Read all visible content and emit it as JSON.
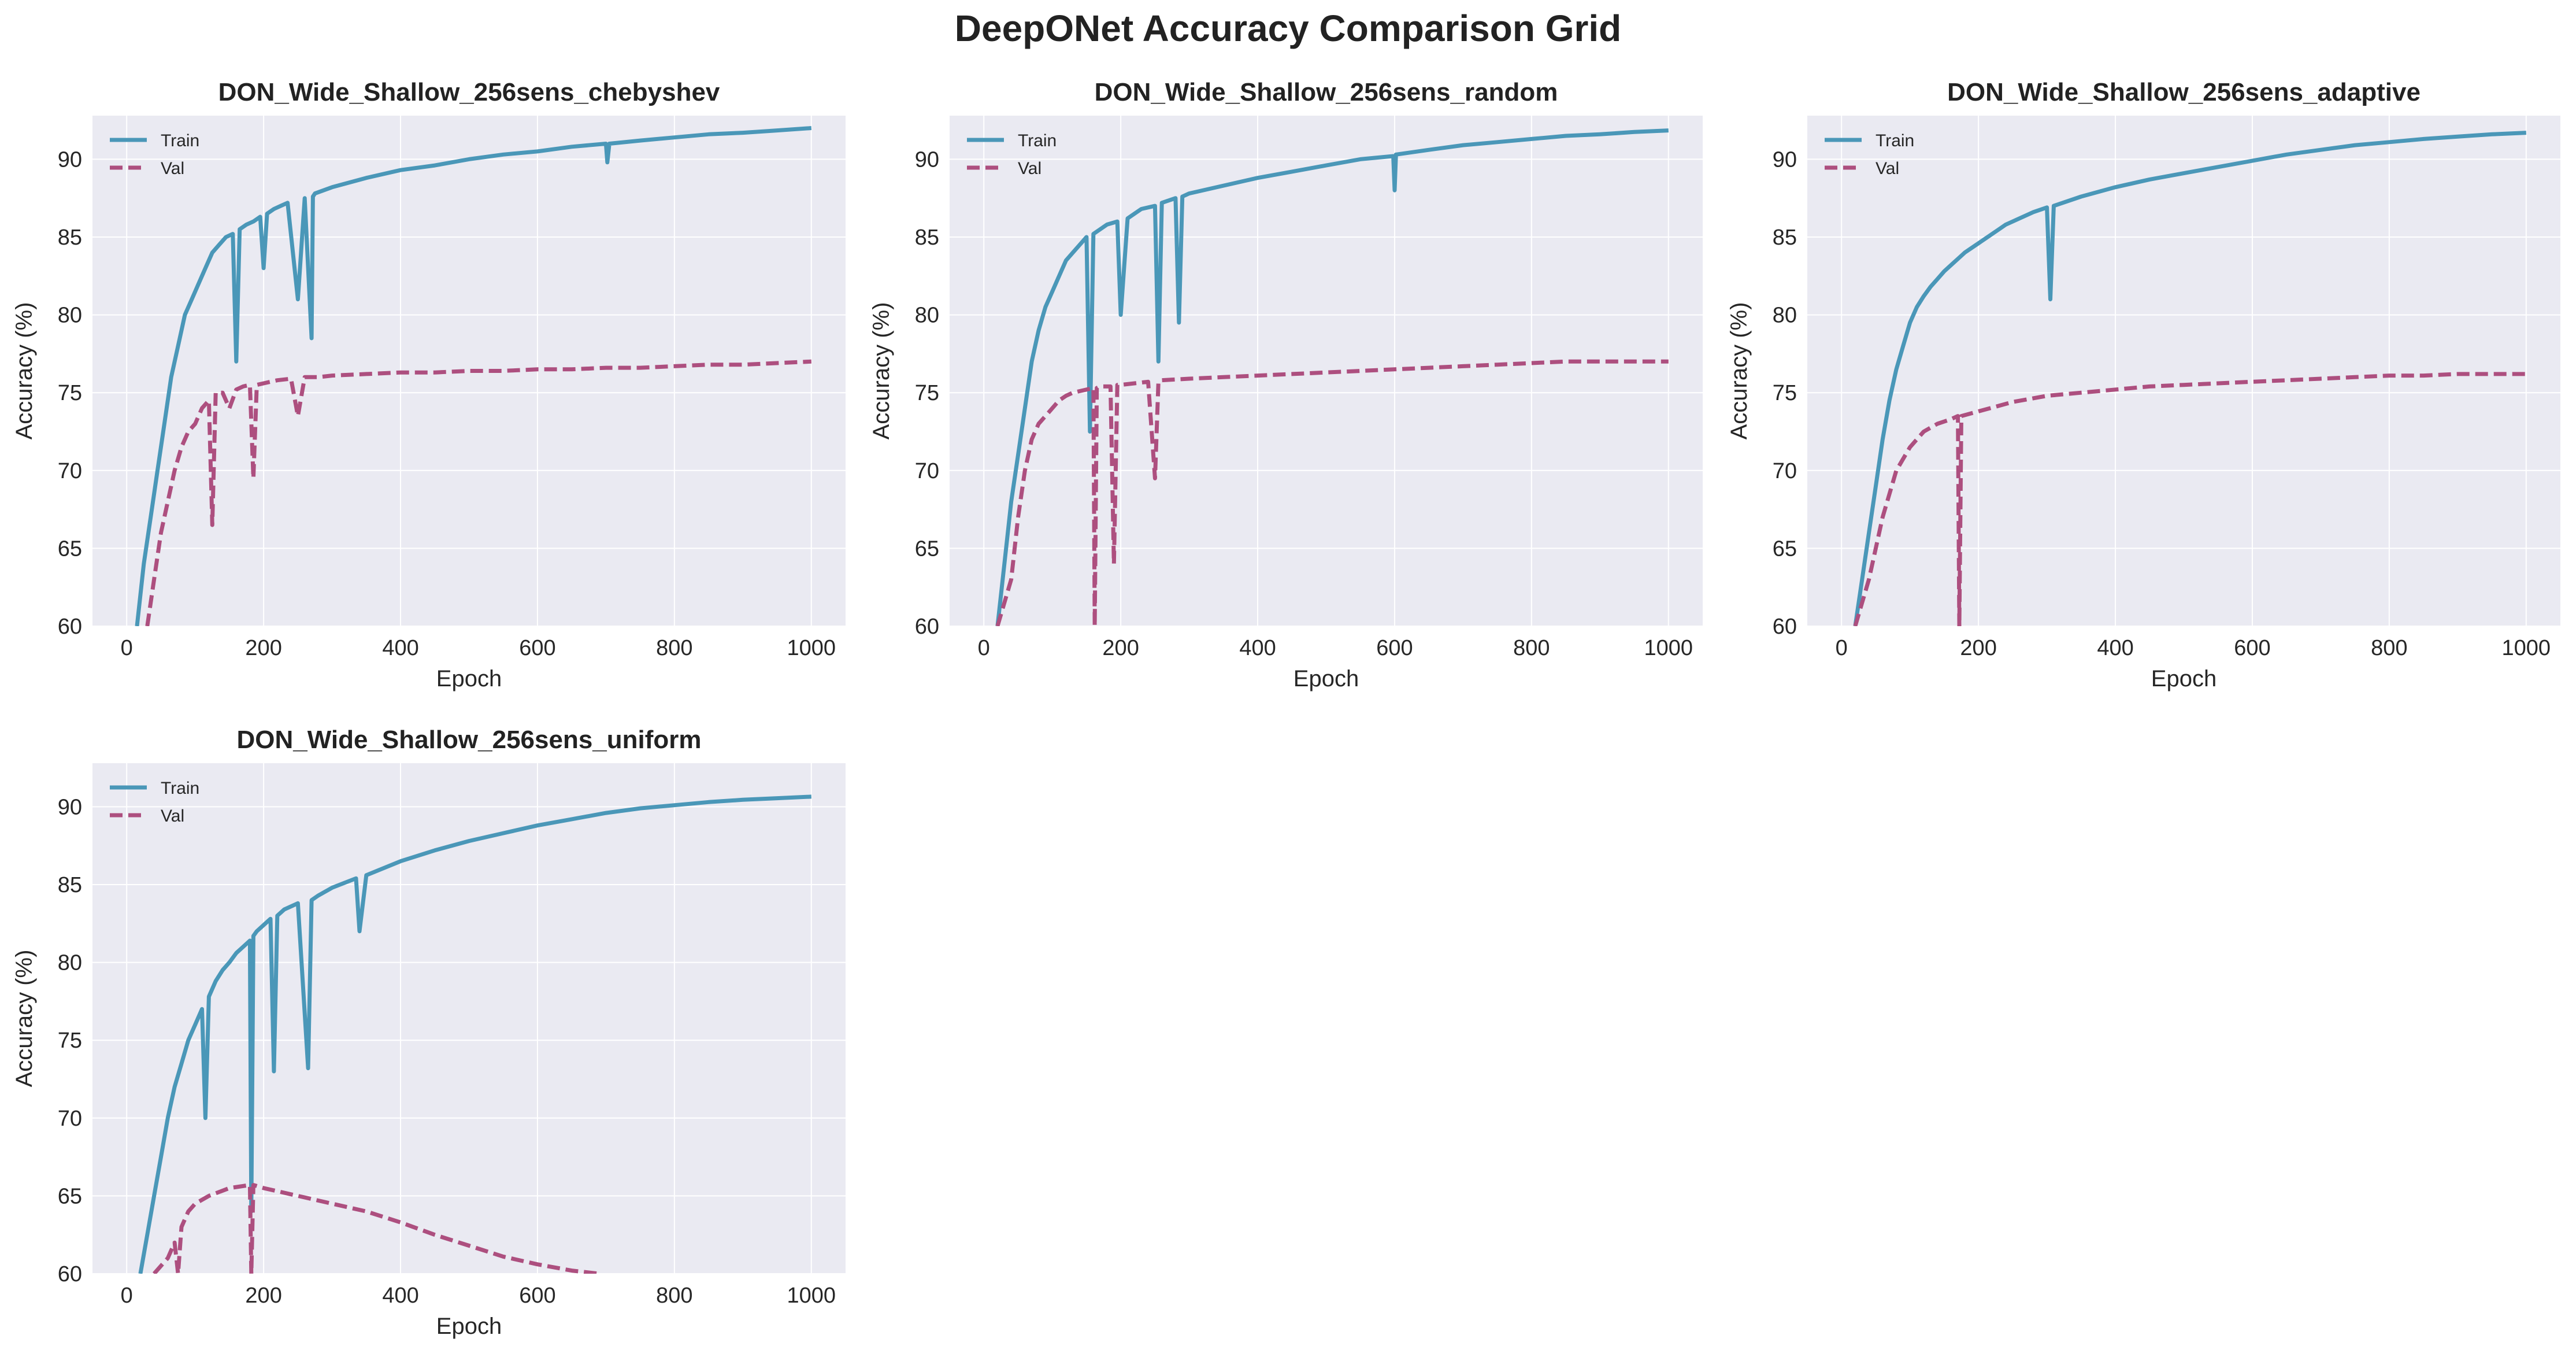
{
  "figure": {
    "title": "DeepONet Accuracy Comparison Grid"
  },
  "colors": {
    "train": "#4a97b8",
    "val": "#ad4f7f",
    "panel_bg": "#eaeaf2",
    "grid": "#ffffff"
  },
  "chart_data": [
    {
      "type": "line",
      "title": "DON_Wide_Shallow_256sens_chebyshev",
      "xlabel": "Epoch",
      "ylabel": "Accuracy (%)",
      "xlim": [
        -50,
        1050
      ],
      "ylim": [
        60,
        92.8
      ],
      "xticks": [
        0,
        200,
        400,
        600,
        800,
        1000
      ],
      "yticks": [
        60,
        65,
        70,
        75,
        80,
        85,
        90
      ],
      "grid": true,
      "legend": "top-left",
      "series": [
        {
          "name": "Train",
          "style": "solid",
          "x": [
            15,
            25,
            35,
            45,
            55,
            65,
            75,
            85,
            95,
            105,
            115,
            125,
            135,
            145,
            155,
            160,
            165,
            175,
            185,
            195,
            200,
            205,
            215,
            225,
            235,
            250,
            260,
            270,
            272,
            275,
            300,
            350,
            400,
            450,
            500,
            550,
            600,
            650,
            700,
            702,
            705,
            750,
            800,
            850,
            900,
            950,
            1000
          ],
          "y": [
            60,
            64,
            67,
            70,
            73,
            76,
            78,
            80,
            81,
            82,
            83,
            84,
            84.5,
            85,
            85.2,
            77,
            85.5,
            85.8,
            86,
            86.3,
            83,
            86.5,
            86.8,
            87,
            87.2,
            81,
            87.5,
            78.5,
            87.6,
            87.8,
            88.2,
            88.8,
            89.3,
            89.6,
            90,
            90.3,
            90.5,
            90.8,
            91,
            89.8,
            91,
            91.2,
            91.4,
            91.6,
            91.7,
            91.85,
            92
          ]
        },
        {
          "name": "Val",
          "style": "dashed",
          "x": [
            30,
            40,
            50,
            60,
            70,
            80,
            90,
            100,
            110,
            120,
            125,
            130,
            140,
            150,
            160,
            170,
            180,
            185,
            190,
            200,
            220,
            240,
            250,
            260,
            280,
            300,
            350,
            400,
            450,
            500,
            550,
            600,
            650,
            700,
            750,
            800,
            850,
            900,
            950,
            1000
          ],
          "y": [
            60,
            63,
            66,
            68,
            70,
            71.5,
            72.5,
            73,
            74,
            74.5,
            66.5,
            75,
            75,
            74,
            75.2,
            75.4,
            75.5,
            69.5,
            75.5,
            75.6,
            75.8,
            75.9,
            73.5,
            76,
            76,
            76.1,
            76.2,
            76.3,
            76.3,
            76.4,
            76.4,
            76.5,
            76.5,
            76.6,
            76.6,
            76.7,
            76.8,
            76.8,
            76.9,
            77
          ]
        }
      ]
    },
    {
      "type": "line",
      "title": "DON_Wide_Shallow_256sens_random",
      "xlabel": "Epoch",
      "ylabel": "Accuracy (%)",
      "xlim": [
        -50,
        1050
      ],
      "ylim": [
        60,
        92.8
      ],
      "xticks": [
        0,
        200,
        400,
        600,
        800,
        1000
      ],
      "yticks": [
        60,
        65,
        70,
        75,
        80,
        85,
        90
      ],
      "grid": true,
      "legend": "top-left",
      "series": [
        {
          "name": "Train",
          "style": "solid",
          "x": [
            20,
            30,
            40,
            50,
            60,
            70,
            80,
            90,
            100,
            110,
            120,
            130,
            140,
            150,
            155,
            160,
            170,
            180,
            195,
            200,
            210,
            220,
            230,
            250,
            255,
            260,
            280,
            285,
            290,
            300,
            350,
            400,
            450,
            500,
            550,
            598,
            600,
            602,
            650,
            700,
            750,
            800,
            850,
            900,
            950,
            1000
          ],
          "y": [
            60,
            64,
            68,
            71,
            74,
            77,
            79,
            80.5,
            81.5,
            82.5,
            83.5,
            84,
            84.5,
            85,
            72.5,
            85.2,
            85.5,
            85.8,
            86,
            80,
            86.2,
            86.5,
            86.8,
            87,
            77,
            87.2,
            87.5,
            79.5,
            87.6,
            87.8,
            88.3,
            88.8,
            89.2,
            89.6,
            90,
            90.2,
            88,
            90.3,
            90.6,
            90.9,
            91.1,
            91.3,
            91.5,
            91.6,
            91.75,
            91.85
          ]
        },
        {
          "name": "Val",
          "style": "dashed",
          "x": [
            20,
            40,
            50,
            60,
            70,
            80,
            90,
            100,
            110,
            120,
            130,
            140,
            150,
            160,
            162,
            165,
            170,
            185,
            190,
            195,
            200,
            220,
            240,
            250,
            255,
            260,
            300,
            350,
            400,
            450,
            500,
            550,
            600,
            650,
            700,
            750,
            800,
            850,
            900,
            950,
            1000
          ],
          "y": [
            60,
            63,
            67,
            70,
            72,
            73,
            73.5,
            74,
            74.5,
            74.8,
            75,
            75.1,
            75.2,
            75.3,
            60,
            75.3,
            75.4,
            75.4,
            64,
            75.5,
            75.5,
            75.6,
            75.7,
            69.5,
            75.7,
            75.8,
            75.9,
            76,
            76.1,
            76.2,
            76.3,
            76.4,
            76.5,
            76.6,
            76.7,
            76.8,
            76.9,
            77,
            77,
            77,
            77
          ]
        }
      ]
    },
    {
      "type": "line",
      "title": "DON_Wide_Shallow_256sens_adaptive",
      "xlabel": "Epoch",
      "ylabel": "Accuracy (%)",
      "xlim": [
        -50,
        1050
      ],
      "ylim": [
        60,
        92.8
      ],
      "xticks": [
        0,
        200,
        400,
        600,
        800,
        1000
      ],
      "yticks": [
        60,
        65,
        70,
        75,
        80,
        85,
        90
      ],
      "grid": true,
      "legend": "top-left",
      "series": [
        {
          "name": "Train",
          "style": "solid",
          "x": [
            20,
            30,
            40,
            50,
            60,
            70,
            80,
            90,
            100,
            110,
            120,
            130,
            140,
            150,
            160,
            170,
            180,
            190,
            200,
            210,
            220,
            230,
            240,
            250,
            260,
            270,
            280,
            300,
            305,
            310,
            350,
            400,
            450,
            500,
            550,
            600,
            650,
            700,
            750,
            800,
            850,
            900,
            950,
            1000
          ],
          "y": [
            60,
            63,
            66,
            69,
            72,
            74.5,
            76.5,
            78,
            79.5,
            80.5,
            81.2,
            81.8,
            82.3,
            82.8,
            83.2,
            83.6,
            84,
            84.3,
            84.6,
            84.9,
            85.2,
            85.5,
            85.8,
            86,
            86.2,
            86.4,
            86.6,
            86.9,
            81,
            87,
            87.6,
            88.2,
            88.7,
            89.1,
            89.5,
            89.9,
            90.3,
            90.6,
            90.9,
            91.1,
            91.3,
            91.45,
            91.6,
            91.7
          ]
        },
        {
          "name": "Val",
          "style": "dashed",
          "x": [
            20,
            40,
            60,
            80,
            100,
            120,
            140,
            160,
            170,
            172,
            175,
            200,
            250,
            300,
            350,
            400,
            450,
            500,
            550,
            600,
            650,
            700,
            750,
            800,
            850,
            900,
            950,
            1000
          ],
          "y": [
            60,
            63,
            67,
            70,
            71.5,
            72.5,
            73,
            73.3,
            73.5,
            60,
            73.5,
            73.8,
            74.4,
            74.8,
            75,
            75.2,
            75.4,
            75.5,
            75.6,
            75.7,
            75.8,
            75.9,
            76,
            76.1,
            76.1,
            76.2,
            76.2,
            76.2
          ]
        }
      ]
    },
    {
      "type": "line",
      "title": "DON_Wide_Shallow_256sens_uniform",
      "xlabel": "Epoch",
      "ylabel": "Accuracy (%)",
      "xlim": [
        -50,
        1050
      ],
      "ylim": [
        60,
        92.8
      ],
      "xticks": [
        0,
        200,
        400,
        600,
        800,
        1000
      ],
      "yticks": [
        60,
        65,
        70,
        75,
        80,
        85,
        90
      ],
      "grid": true,
      "legend": "top-left",
      "series": [
        {
          "name": "Train",
          "style": "solid",
          "x": [
            20,
            30,
            40,
            50,
            60,
            70,
            80,
            90,
            100,
            110,
            115,
            120,
            130,
            140,
            150,
            160,
            170,
            180,
            182,
            185,
            190,
            200,
            210,
            215,
            220,
            230,
            250,
            265,
            270,
            280,
            300,
            335,
            340,
            350,
            400,
            450,
            500,
            550,
            600,
            650,
            700,
            750,
            800,
            850,
            900,
            950,
            1000
          ],
          "y": [
            60,
            62.5,
            65,
            67.5,
            70,
            72,
            73.5,
            75,
            76,
            77,
            70,
            77.8,
            78.8,
            79.5,
            80,
            80.6,
            81,
            81.4,
            64,
            81.7,
            82,
            82.4,
            82.8,
            73,
            83,
            83.4,
            83.8,
            73.2,
            84,
            84.3,
            84.8,
            85.4,
            82,
            85.6,
            86.5,
            87.2,
            87.8,
            88.3,
            88.8,
            89.2,
            89.6,
            89.9,
            90.1,
            90.3,
            90.45,
            90.55,
            90.65
          ]
        },
        {
          "name": "Val",
          "style": "dashed",
          "x": [
            40,
            60,
            70,
            75,
            80,
            90,
            100,
            120,
            150,
            180,
            182,
            185,
            200,
            250,
            300,
            350,
            400,
            450,
            500,
            550,
            600,
            650,
            690
          ],
          "y": [
            60,
            61,
            62,
            60,
            63,
            64,
            64.5,
            65,
            65.5,
            65.7,
            60,
            65.7,
            65.5,
            65,
            64.5,
            64,
            63.3,
            62.5,
            61.8,
            61.1,
            60.6,
            60.2,
            60
          ]
        }
      ]
    }
  ]
}
